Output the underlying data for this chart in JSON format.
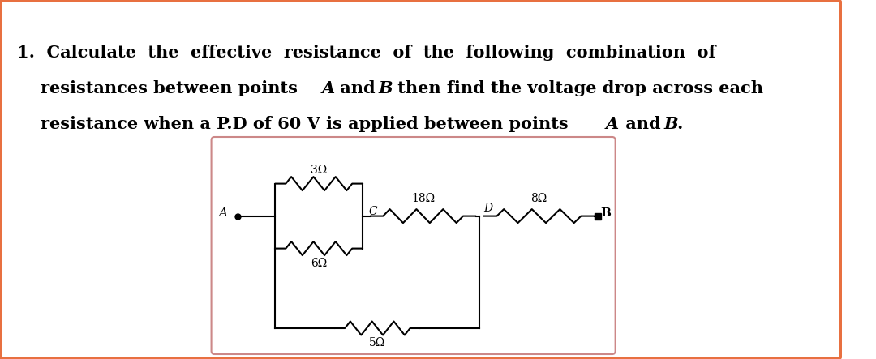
{
  "bg_color": "#ffffff",
  "outer_border_color": "#e87040",
  "circuit_border_color": "#cc8888",
  "text_fontsize": 15,
  "circuit_fontsize": 10,
  "resistors": {
    "R3": "3Ω",
    "R6": "6Ω",
    "R18": "18Ω",
    "R8": "8Ω",
    "R5": "5Ω"
  },
  "nodes": [
    "A",
    "C",
    "D",
    "B"
  ]
}
